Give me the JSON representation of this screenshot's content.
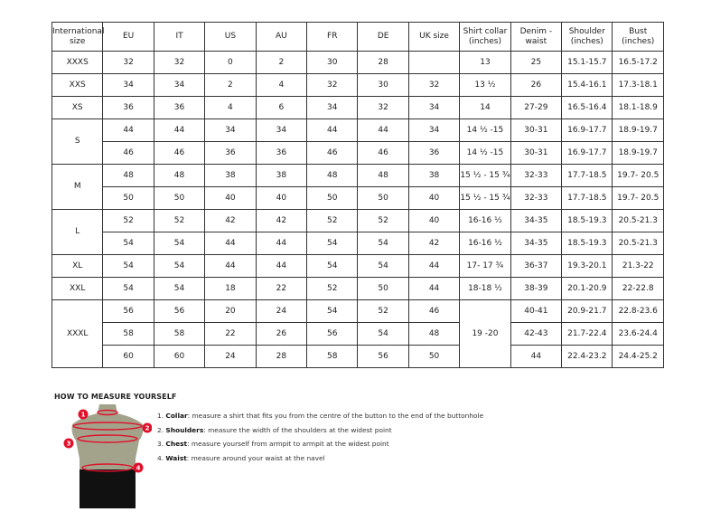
{
  "headers": [
    "International size",
    "EU",
    "IT",
    "US",
    "AU",
    "FR",
    "DE",
    "UK size",
    "Shirt collar (inches)",
    "Denim - waist",
    "Shoulder (inches)",
    "Bust (inches)"
  ],
  "groups": [
    {
      "label": "XXXS",
      "rows": [
        [
          "32",
          "32",
          "0",
          "2",
          "30",
          "28",
          "",
          "13",
          "25",
          "15.1-15.7",
          "16.5-17.2"
        ]
      ]
    },
    {
      "label": "XXS",
      "rows": [
        [
          "34",
          "34",
          "2",
          "4",
          "32",
          "30",
          "32",
          "13 ½",
          "26",
          "15.4-16.1",
          "17.3-18.1"
        ]
      ]
    },
    {
      "label": "XS",
      "rows": [
        [
          "36",
          "36",
          "4",
          "6",
          "34",
          "32",
          "34",
          "14",
          "27-29",
          "16.5-16.4",
          "18.1-18.9"
        ]
      ]
    },
    {
      "label": "S",
      "rows": [
        [
          "44",
          "44",
          "34",
          "34",
          "44",
          "44",
          "34",
          "14 ½ -15",
          "30-31",
          "16.9-17.7",
          "18.9-19.7"
        ],
        [
          "46",
          "46",
          "36",
          "36",
          "46",
          "46",
          "36",
          "14 ½ -15",
          "30-31",
          "16.9-17.7",
          "18.9-19.7"
        ]
      ]
    },
    {
      "label": "M",
      "rows": [
        [
          "48",
          "48",
          "38",
          "38",
          "48",
          "48",
          "38",
          "15 ½ - 15 ¾",
          "32-33",
          "17.7-18.5",
          "19.7- 20.5"
        ],
        [
          "50",
          "50",
          "40",
          "40",
          "50",
          "50",
          "40",
          "15 ½ - 15 ¾",
          "32-33",
          "17.7-18.5",
          "19.7- 20.5"
        ]
      ]
    },
    {
      "label": "L",
      "rows": [
        [
          "52",
          "52",
          "42",
          "42",
          "52",
          "52",
          "40",
          "16-16 ½",
          "34-35",
          "18.5-19.3",
          "20.5-21.3"
        ],
        [
          "54",
          "54",
          "44",
          "44",
          "54",
          "54",
          "42",
          "16-16 ½",
          "34-35",
          "18.5-19.3",
          "20.5-21.3"
        ]
      ]
    },
    {
      "label": "XL",
      "rows": [
        [
          "54",
          "54",
          "44",
          "44",
          "54",
          "54",
          "44",
          "17- 17 ¾",
          "36-37",
          "19.3-20.1",
          "21.3-22"
        ]
      ]
    },
    {
      "label": "XXL",
      "rows": [
        [
          "54",
          "54",
          "18",
          "22",
          "52",
          "50",
          "44",
          "18-18 ½",
          "38-39",
          "20.1-20.9",
          "22-22.8"
        ]
      ]
    },
    {
      "label": "XXXL",
      "rows": [
        [
          "56",
          "56",
          "20",
          "24",
          "54",
          "52",
          "46",
          "19 -20",
          "40-41",
          "20.9-21.7",
          "22.8-23.6"
        ],
        [
          "58",
          "58",
          "22",
          "26",
          "56",
          "54",
          "48",
          null,
          "42-43",
          "21.7-22.4",
          "23.6-24.4"
        ],
        [
          "60",
          "60",
          "24",
          "28",
          "58",
          "56",
          "50",
          null,
          "44",
          "22.4-23.2",
          "24.4-25.2"
        ]
      ]
    }
  ],
  "measure": {
    "title": "HOW TO MEASURE YOURSELF",
    "steps": [
      {
        "num": "1.",
        "term": "Collar",
        "text": ": measure a shirt that fits you from the centre of the button to the end of the buttonhole"
      },
      {
        "num": "2.",
        "term": "Shoulders",
        "text": ": measure the width of the shoulders at the widest point"
      },
      {
        "num": "3.",
        "term": "Chest",
        "text": ": measure yourself from armpit to armpit at the widest point"
      },
      {
        "num": "4.",
        "term": "Waist",
        "text": ": measure around your waist at the navel"
      }
    ],
    "markers": [
      "1",
      "2",
      "3",
      "4"
    ],
    "accent": "#e0102a"
  }
}
